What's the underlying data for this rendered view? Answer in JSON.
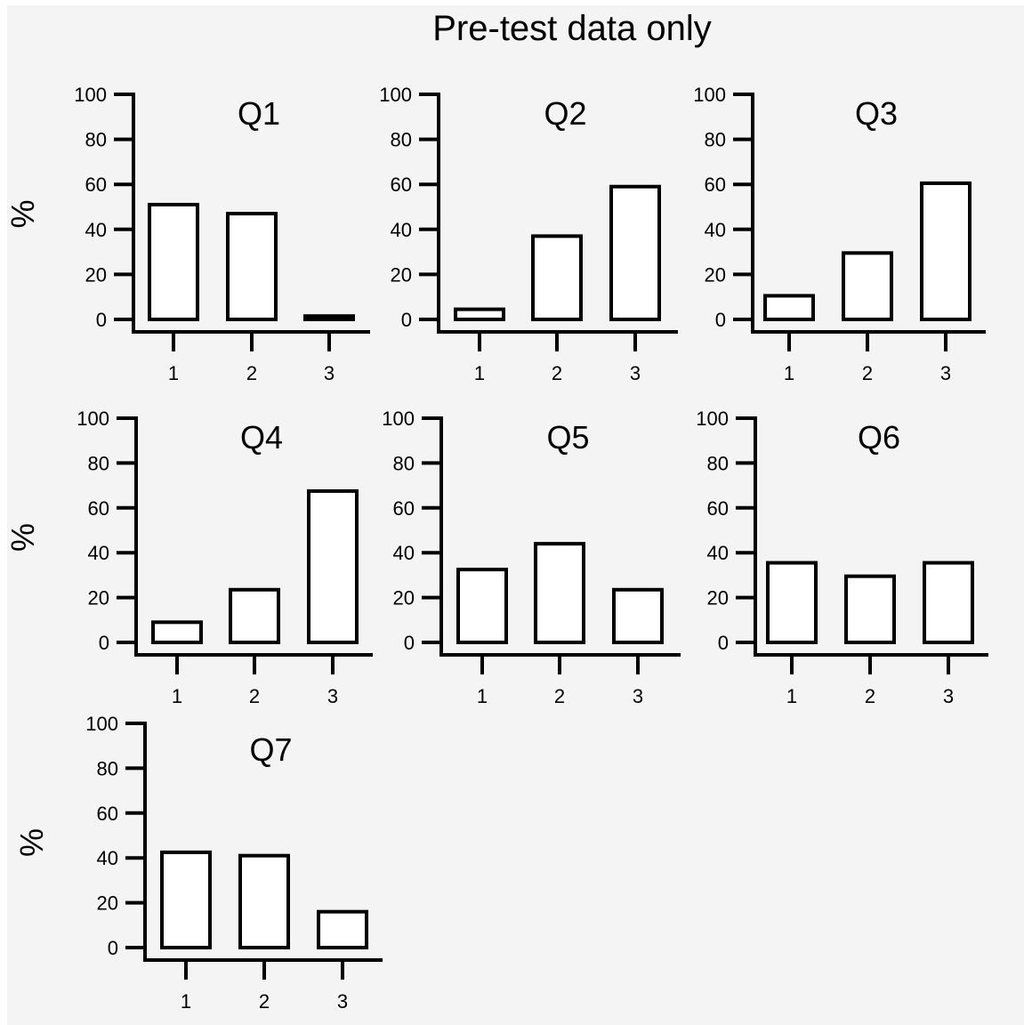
{
  "figure": {
    "title": "Pre-test data only",
    "background": "#f4f4f4",
    "axis_color": "#000000",
    "bar_fill": "#ffffff",
    "bar_stroke": "#000000"
  },
  "chart_data": [
    {
      "type": "bar",
      "title": "Q1",
      "ylabel": "%",
      "categories": [
        "1",
        "2",
        "3"
      ],
      "values": [
        51,
        47,
        1.5
      ],
      "ylim": [
        0,
        100
      ],
      "yticks": [
        "0",
        "20",
        "40",
        "60",
        "80",
        "100"
      ],
      "grid": false
    },
    {
      "type": "bar",
      "title": "Q2",
      "ylabel": "",
      "categories": [
        "1",
        "2",
        "3"
      ],
      "values": [
        4.5,
        37,
        59
      ],
      "ylim": [
        0,
        100
      ],
      "yticks": [
        "0",
        "20",
        "40",
        "60",
        "80",
        "100"
      ],
      "grid": false
    },
    {
      "type": "bar",
      "title": "Q3",
      "ylabel": "",
      "categories": [
        "1",
        "2",
        "3"
      ],
      "values": [
        10.5,
        29.5,
        60.5
      ],
      "ylim": [
        0,
        100
      ],
      "yticks": [
        "0",
        "20",
        "40",
        "60",
        "80",
        "100"
      ],
      "grid": false
    },
    {
      "type": "bar",
      "title": "Q4",
      "ylabel": "%",
      "categories": [
        "1",
        "2",
        "3"
      ],
      "values": [
        9,
        23.5,
        67.5
      ],
      "ylim": [
        0,
        100
      ],
      "yticks": [
        "0",
        "20",
        "40",
        "60",
        "80",
        "100"
      ],
      "grid": false
    },
    {
      "type": "bar",
      "title": "Q5",
      "ylabel": "",
      "categories": [
        "1",
        "2",
        "3"
      ],
      "values": [
        32.5,
        44,
        23.5
      ],
      "ylim": [
        0,
        100
      ],
      "yticks": [
        "0",
        "20",
        "40",
        "60",
        "80",
        "100"
      ],
      "grid": false
    },
    {
      "type": "bar",
      "title": "Q6",
      "ylabel": "",
      "categories": [
        "1",
        "2",
        "3"
      ],
      "values": [
        35.5,
        29.5,
        35.5
      ],
      "ylim": [
        0,
        100
      ],
      "yticks": [
        "0",
        "20",
        "40",
        "60",
        "80",
        "100"
      ],
      "grid": false
    },
    {
      "type": "bar",
      "title": "Q7",
      "ylabel": "%",
      "categories": [
        "1",
        "2",
        "3"
      ],
      "values": [
        42.5,
        41,
        16
      ],
      "ylim": [
        0,
        100
      ],
      "yticks": [
        "0",
        "20",
        "40",
        "60",
        "80",
        "100"
      ],
      "grid": false
    }
  ]
}
